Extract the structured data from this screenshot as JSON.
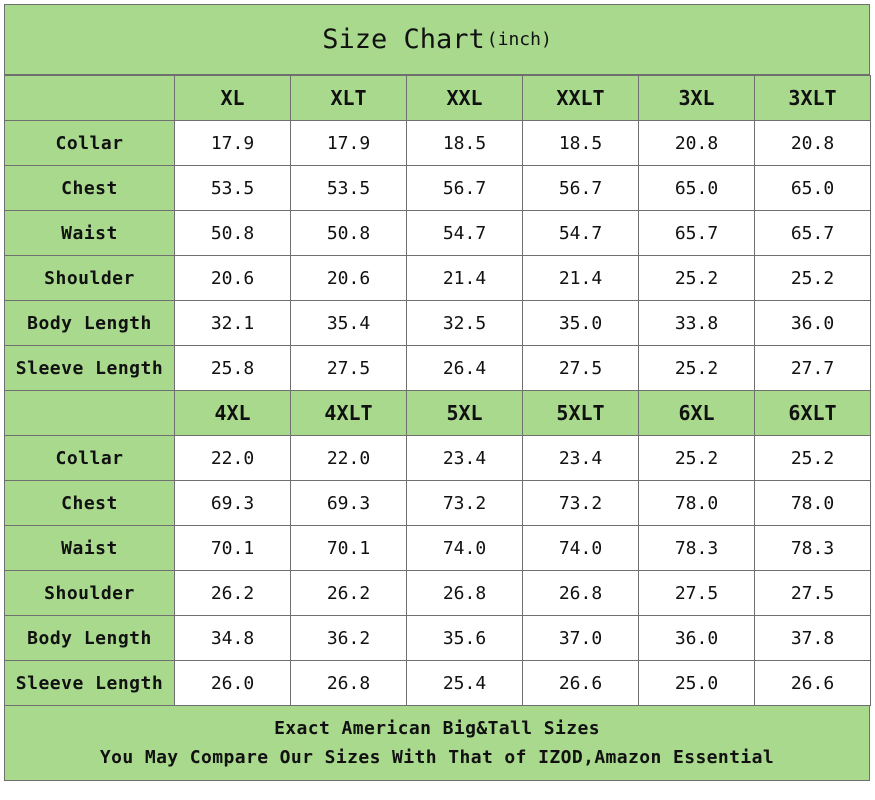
{
  "title": {
    "main": "Size Chart",
    "unit": "(inch)"
  },
  "row_labels": [
    "Collar",
    "Chest",
    "Waist",
    "Shoulder",
    "Body Length",
    "Sleeve Length"
  ],
  "tables": [
    {
      "sizes": [
        "XL",
        "XLT",
        "XXL",
        "XXLT",
        "3XL",
        "3XLT"
      ],
      "rows": [
        [
          "17.9",
          "17.9",
          "18.5",
          "18.5",
          "20.8",
          "20.8"
        ],
        [
          "53.5",
          "53.5",
          "56.7",
          "56.7",
          "65.0",
          "65.0"
        ],
        [
          "50.8",
          "50.8",
          "54.7",
          "54.7",
          "65.7",
          "65.7"
        ],
        [
          "20.6",
          "20.6",
          "21.4",
          "21.4",
          "25.2",
          "25.2"
        ],
        [
          "32.1",
          "35.4",
          "32.5",
          "35.0",
          "33.8",
          "36.0"
        ],
        [
          "25.8",
          "27.5",
          "26.4",
          "27.5",
          "25.2",
          "27.7"
        ]
      ]
    },
    {
      "sizes": [
        "4XL",
        "4XLT",
        "5XL",
        "5XLT",
        "6XL",
        "6XLT"
      ],
      "rows": [
        [
          "22.0",
          "22.0",
          "23.4",
          "23.4",
          "25.2",
          "25.2"
        ],
        [
          "69.3",
          "69.3",
          "73.2",
          "73.2",
          "78.0",
          "78.0"
        ],
        [
          "70.1",
          "70.1",
          "74.0",
          "74.0",
          "78.3",
          "78.3"
        ],
        [
          "26.2",
          "26.2",
          "26.8",
          "26.8",
          "27.5",
          "27.5"
        ],
        [
          "34.8",
          "36.2",
          "35.6",
          "37.0",
          "36.0",
          "37.8"
        ],
        [
          "26.0",
          "26.8",
          "25.4",
          "26.6",
          "25.0",
          "26.6"
        ]
      ]
    }
  ],
  "footer": {
    "line1": "Exact American Big&Tall Sizes",
    "line2": "You May Compare Our Sizes With That of IZOD,Amazon Essential"
  },
  "colors": {
    "header_green": "#a9d98d",
    "cell_white": "#ffffff",
    "border": "#6f6f6f"
  }
}
